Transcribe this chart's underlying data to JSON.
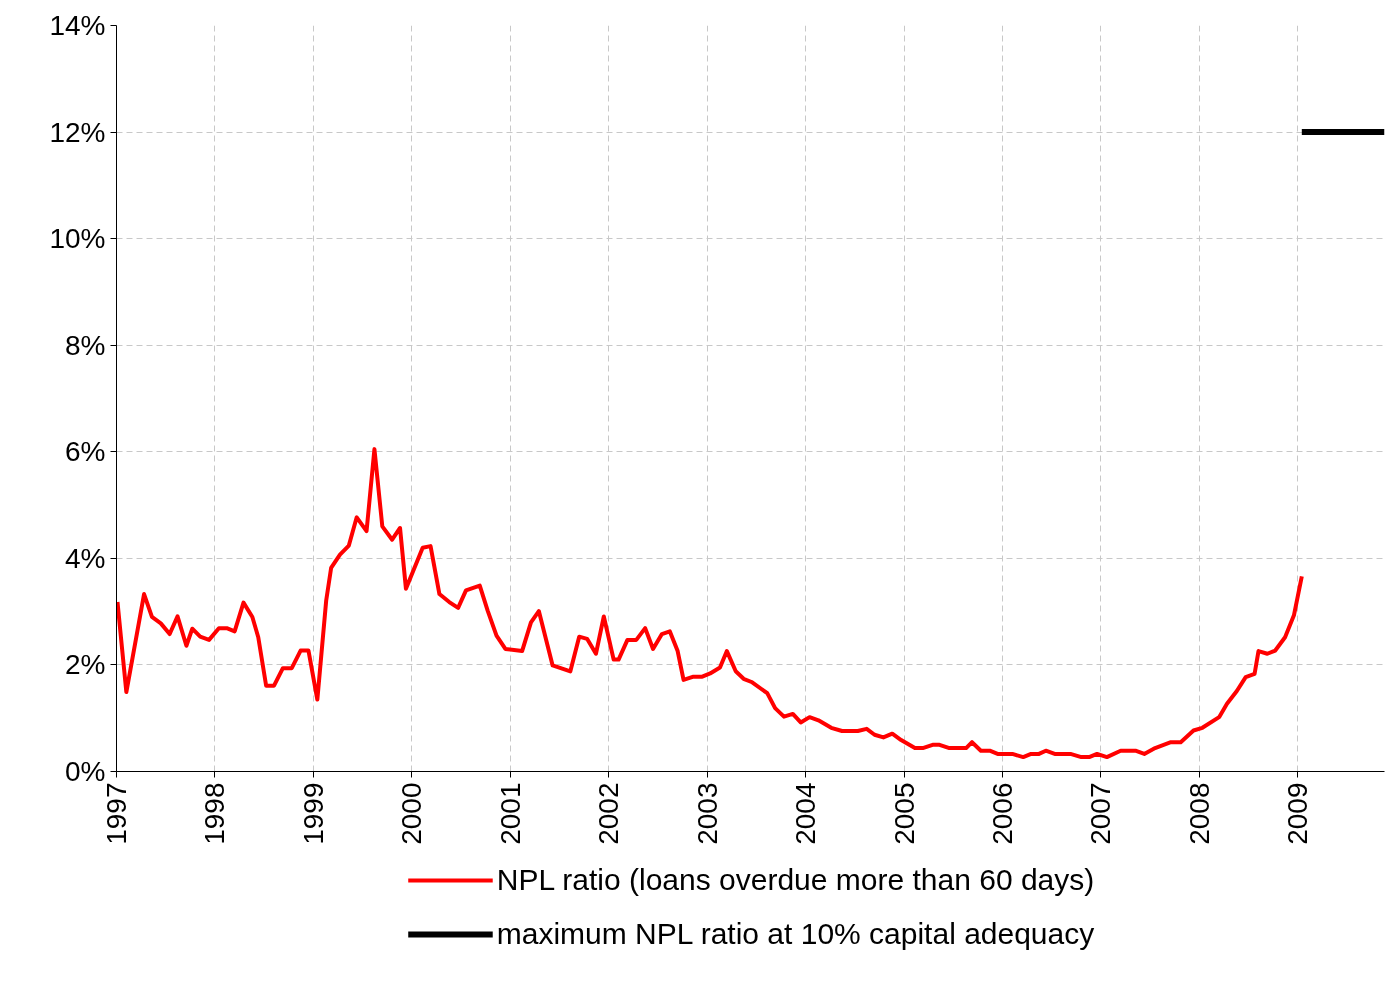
{
  "chart_data": {
    "type": "line",
    "xlim": [
      1997,
      2009.88
    ],
    "xticks": [
      1997,
      1998,
      1999,
      2000,
      2001,
      2002,
      2003,
      2004,
      2005,
      2006,
      2007,
      2008,
      2009
    ],
    "ylim": [
      0,
      14
    ],
    "yticks": [
      {
        "value": 0,
        "label": "0%"
      },
      {
        "value": 2,
        "label": "2%"
      },
      {
        "value": 4,
        "label": "4%"
      },
      {
        "value": 6,
        "label": "6%"
      },
      {
        "value": 8,
        "label": "8%"
      },
      {
        "value": 10,
        "label": "10%"
      },
      {
        "value": 12,
        "label": "12%"
      },
      {
        "value": 14,
        "label": "14%"
      }
    ],
    "grid": true,
    "legend": "bottom",
    "line_style": "solid",
    "series": [
      {
        "name": "NPL ratio (loans overdue more than 60 days)",
        "color": "#ff0000",
        "x": [
          1997.01,
          1997.1,
          1997.28,
          1997.36,
          1997.45,
          1997.54,
          1997.62,
          1997.71,
          1997.77,
          1997.85,
          1997.94,
          1998.04,
          1998.12,
          1998.2,
          1998.29,
          1998.38,
          1998.44,
          1998.52,
          1998.6,
          1998.69,
          1998.78,
          1998.87,
          1998.95,
          1999.04,
          1999.13,
          1999.18,
          1999.27,
          1999.36,
          1999.44,
          1999.54,
          1999.62,
          1999.7,
          1999.8,
          1999.88,
          1999.94,
          2000.11,
          2000.19,
          2000.28,
          2000.38,
          2000.47,
          2000.55,
          2000.69,
          2000.77,
          2000.86,
          2000.95,
          2001.12,
          2001.21,
          2001.29,
          2001.43,
          2001.61,
          2001.7,
          2001.78,
          2001.87,
          2001.95,
          2002.05,
          2002.1,
          2002.19,
          2002.28,
          2002.37,
          2002.45,
          2002.54,
          2002.62,
          2002.7,
          2002.76,
          2002.86,
          2002.95,
          2003.03,
          2003.13,
          2003.2,
          2003.29,
          2003.37,
          2003.45,
          2003.61,
          2003.69,
          2003.78,
          2003.87,
          2003.95,
          2004.04,
          2004.13,
          2004.26,
          2004.37,
          2004.53,
          2004.62,
          2004.7,
          2004.79,
          2004.88,
          2004.97,
          2005.11,
          2005.19,
          2005.29,
          2005.36,
          2005.46,
          2005.63,
          2005.69,
          2005.78,
          2005.87,
          2005.95,
          2006.1,
          2006.21,
          2006.29,
          2006.37,
          2006.44,
          2006.53,
          2006.69,
          2006.8,
          2006.88,
          2006.96,
          2007.06,
          2007.2,
          2007.35,
          2007.44,
          2007.55,
          2007.71,
          2007.81,
          2007.94,
          2008.03,
          2008.2,
          2008.28,
          2008.38,
          2008.47,
          2008.56,
          2008.6,
          2008.69,
          2008.77,
          2008.87,
          2008.96,
          2009.04
        ],
        "values": [
          3.18,
          1.49,
          3.33,
          2.9,
          2.78,
          2.58,
          2.91,
          2.36,
          2.68,
          2.53,
          2.47,
          2.69,
          2.69,
          2.63,
          3.17,
          2.9,
          2.52,
          1.61,
          1.61,
          1.94,
          1.94,
          2.27,
          2.27,
          1.35,
          3.21,
          3.82,
          4.07,
          4.24,
          4.77,
          4.51,
          6.05,
          4.6,
          4.35,
          4.57,
          3.43,
          4.2,
          4.23,
          3.33,
          3.18,
          3.07,
          3.4,
          3.49,
          3.02,
          2.55,
          2.3,
          2.26,
          2.8,
          3.01,
          1.99,
          1.88,
          2.53,
          2.49,
          2.21,
          2.91,
          2.1,
          2.1,
          2.47,
          2.47,
          2.69,
          2.3,
          2.58,
          2.63,
          2.26,
          1.72,
          1.78,
          1.78,
          1.84,
          1.95,
          2.26,
          1.88,
          1.74,
          1.68,
          1.47,
          1.19,
          1.03,
          1.08,
          0.92,
          1.02,
          0.96,
          0.82,
          0.76,
          0.76,
          0.8,
          0.69,
          0.64,
          0.71,
          0.59,
          0.44,
          0.44,
          0.5,
          0.5,
          0.44,
          0.44,
          0.55,
          0.39,
          0.39,
          0.33,
          0.33,
          0.27,
          0.33,
          0.33,
          0.39,
          0.33,
          0.33,
          0.27,
          0.27,
          0.33,
          0.27,
          0.39,
          0.39,
          0.33,
          0.44,
          0.55,
          0.55,
          0.77,
          0.82,
          1.02,
          1.27,
          1.51,
          1.77,
          1.83,
          2.26,
          2.21,
          2.27,
          2.52,
          2.93,
          3.66
        ]
      },
      {
        "name": "maximum NPL ratio at 10% capital adequacy",
        "color": "#000000",
        "x": [
          2009.04,
          2009.88
        ],
        "values": [
          12,
          12
        ]
      }
    ]
  }
}
